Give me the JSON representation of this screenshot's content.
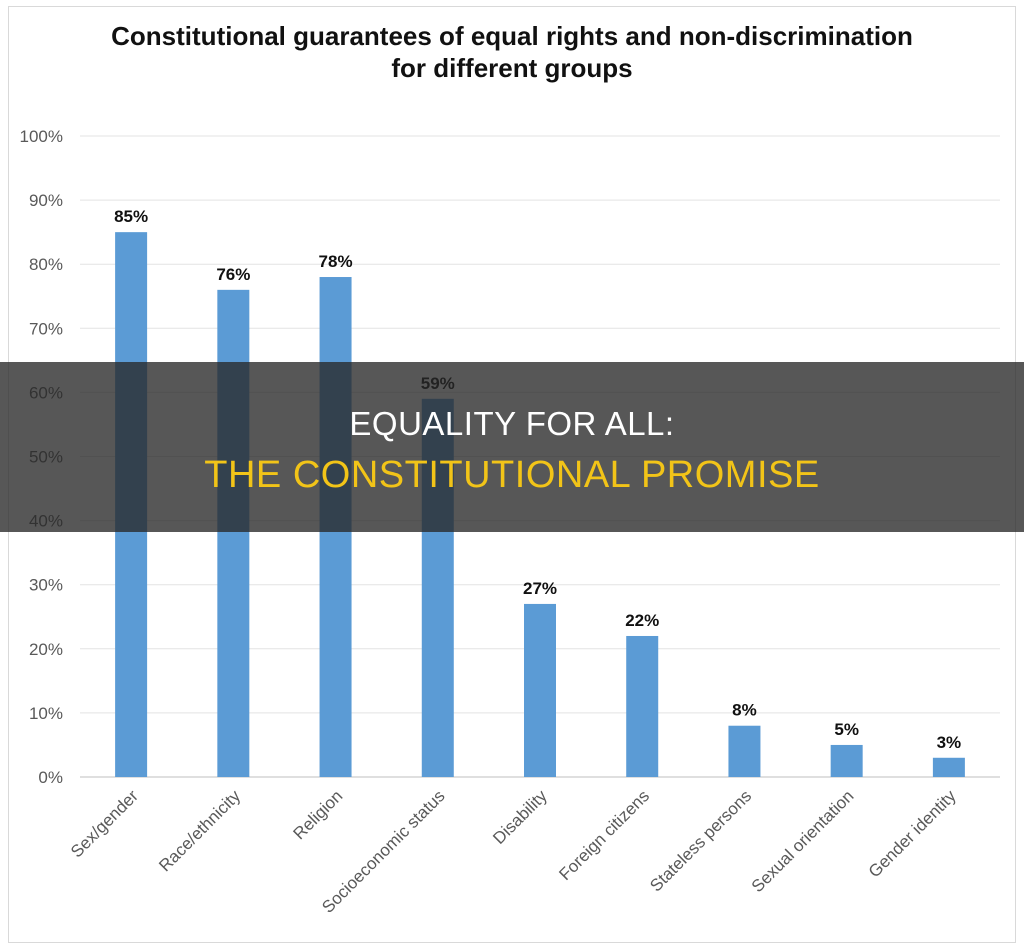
{
  "chart_data": {
    "type": "bar",
    "title": "Constitutional guarantees of equal rights and non-discrimination for different groups",
    "categories": [
      "Sex/gender",
      "Race/ethnicity",
      "Religion",
      "Socioeconomic status",
      "Disability",
      "Foreign citizens",
      "Stateless persons",
      "Sexual orientation",
      "Gender identity"
    ],
    "values": [
      85,
      76,
      78,
      59,
      27,
      22,
      8,
      5,
      3
    ],
    "data_labels": [
      "85%",
      "76%",
      "78%",
      "59%",
      "27%",
      "22%",
      "8%",
      "5%",
      "3%"
    ],
    "y_ticks": [
      "0%",
      "10%",
      "20%",
      "30%",
      "40%",
      "50%",
      "60%",
      "70%",
      "80%",
      "90%",
      "100%"
    ],
    "ylim": [
      0,
      100
    ],
    "xlabel": "",
    "ylabel": "",
    "grid": true,
    "bar_color": "#5b9bd5"
  },
  "overlay": {
    "line1": "EQUALITY FOR ALL:",
    "line2": "THE CONSTITUTIONAL PROMISE",
    "line1_color": "#ffffff",
    "line2_color": "#f2c418"
  }
}
